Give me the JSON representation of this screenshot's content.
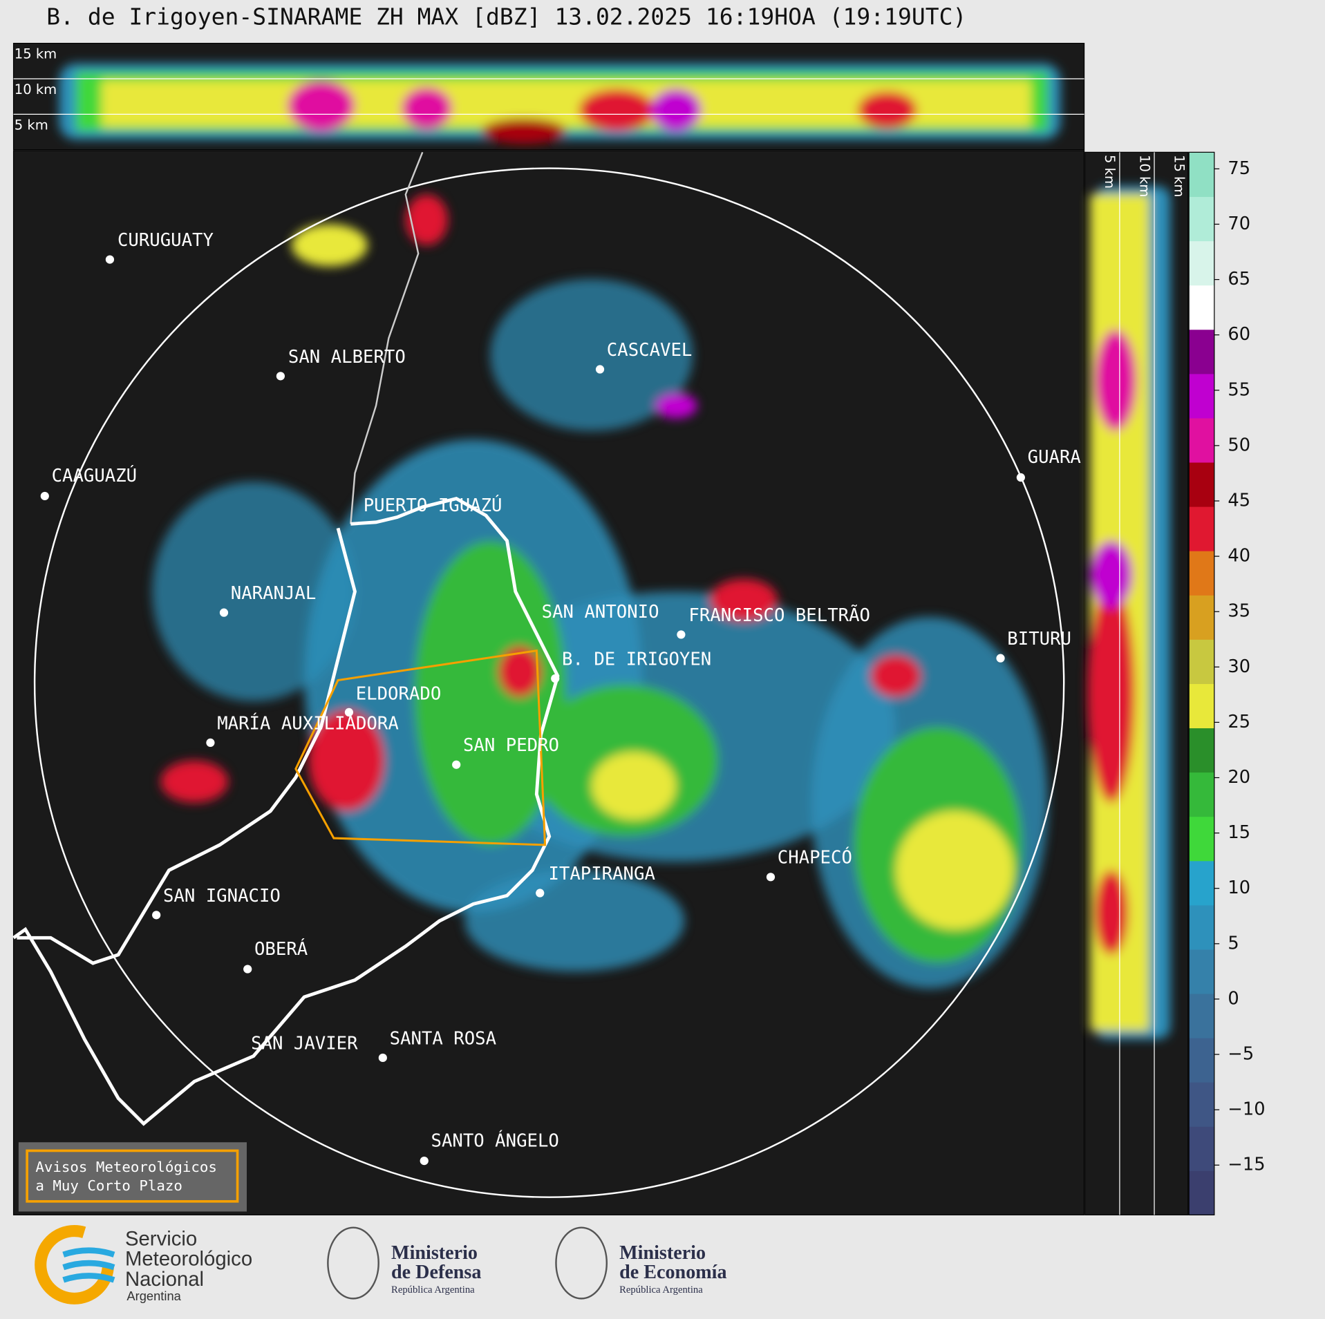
{
  "header": {
    "title": "B. de Irigoyen-SINARAME ZH MAX [dBZ] 13.02.2025 16:19HOA (19:19UTC)"
  },
  "height_labels": {
    "top": [
      "15 km",
      "10 km",
      "5 km"
    ],
    "side": [
      "5 km",
      "10 km",
      "15 km"
    ]
  },
  "cities": [
    "CURUGUATY",
    "SAN ALBERTO",
    "CAAGUAZÚ",
    "PUERTO IGUAZÚ",
    "NARANJAL",
    "CASCAVEL",
    "GUARA",
    "SAN ANTONIO",
    "FRANCISCO BELTRÃO",
    "BITURU",
    "B. DE IRIGOYEN",
    "ELDORADO",
    "MARÍA AUXILIADORA",
    "SAN PEDRO",
    "CHAPECÓ",
    "ITAPIRANGA",
    "SAN IGNACIO",
    "OBERÁ",
    "SAN JAVIER",
    "SANTA ROSA",
    "SANTO ÁNGELO"
  ],
  "notice": [
    "Avisos Meteorológicos",
    "a Muy Corto Plazo"
  ],
  "colorbar": {
    "lim": [
      -19.5,
      76.5
    ],
    "ticks": [
      {
        "value": -15,
        "label": "−15"
      },
      {
        "value": -10,
        "label": "−10"
      },
      {
        "value": -5,
        "label": "−5"
      },
      0,
      5,
      10,
      15,
      20,
      25,
      30,
      35,
      40,
      45,
      50,
      55,
      60,
      65,
      70,
      75
    ],
    "colors": [
      "#3b3f6e",
      "#3e4a7a",
      "#3f5685",
      "#3d6390",
      "#3a729c",
      "#3581aa",
      "#2e91bb",
      "#27a3cc",
      "#3fd83a",
      "#35b93a",
      "#2a8f2a",
      "#e8e83a",
      "#c8c840",
      "#d8a020",
      "#e07818",
      "#e01830",
      "#a80010",
      "#e010a0",
      "#c000d0",
      "#8a0090",
      "#ffffff",
      "#d8f4ea",
      "#b0ecd8",
      "#90e0c4"
    ]
  },
  "logos": {
    "smn": [
      "Servicio",
      "Meteorológico",
      "Nacional",
      "Argentina"
    ],
    "defensa": [
      "Ministerio",
      "de Defensa",
      "República Argentina"
    ],
    "economia": [
      "Ministerio",
      "de Economía",
      "República Argentina"
    ]
  }
}
